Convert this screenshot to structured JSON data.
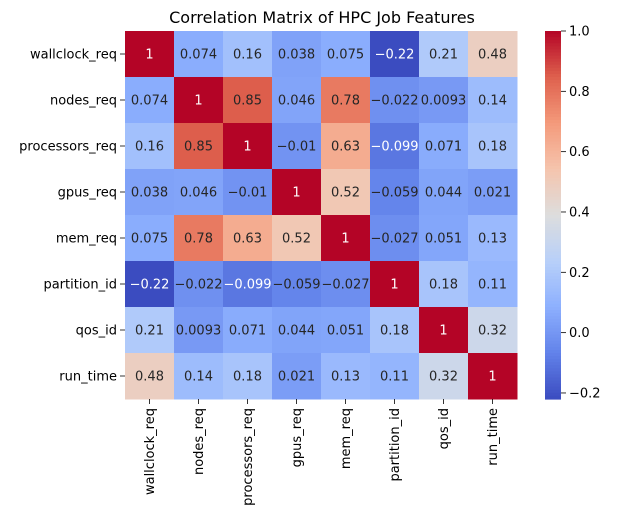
{
  "chart_data": {
    "type": "heatmap",
    "title": "Correlation Matrix of HPC Job Features",
    "xlabel": "",
    "ylabel": "",
    "labels": [
      "wallclock_req",
      "nodes_req",
      "processors_req",
      "gpus_req",
      "mem_req",
      "partition_id",
      "qos_id",
      "run_time"
    ],
    "matrix": [
      [
        1,
        0.074,
        0.16,
        0.038,
        0.075,
        -0.22,
        0.21,
        0.48
      ],
      [
        0.074,
        1,
        0.85,
        0.046,
        0.78,
        -0.022,
        0.0093,
        0.14
      ],
      [
        0.16,
        0.85,
        1,
        -0.01,
        0.63,
        -0.099,
        0.071,
        0.18
      ],
      [
        0.038,
        0.046,
        -0.01,
        1,
        0.52,
        -0.059,
        0.044,
        0.021
      ],
      [
        0.075,
        0.78,
        0.63,
        0.52,
        1,
        -0.027,
        0.051,
        0.13
      ],
      [
        -0.22,
        -0.022,
        -0.099,
        -0.059,
        -0.027,
        1,
        0.18,
        0.11
      ],
      [
        0.21,
        0.0093,
        0.071,
        0.044,
        0.051,
        0.18,
        1,
        0.32
      ],
      [
        0.48,
        0.14,
        0.18,
        0.021,
        0.13,
        0.11,
        0.32,
        1
      ]
    ],
    "annotate": true,
    "colormap": "coolwarm",
    "vmin": -0.22,
    "vmax": 1,
    "colorbar_ticks": [
      -0.2,
      0.0,
      0.2,
      0.4,
      0.6,
      0.8,
      1.0
    ],
    "colorbar_tick_labels": [
      "−0.2",
      "0.0",
      "0.2",
      "0.4",
      "0.6",
      "0.8",
      "1.0"
    ],
    "grid": false,
    "legend": "colorbar-right"
  }
}
